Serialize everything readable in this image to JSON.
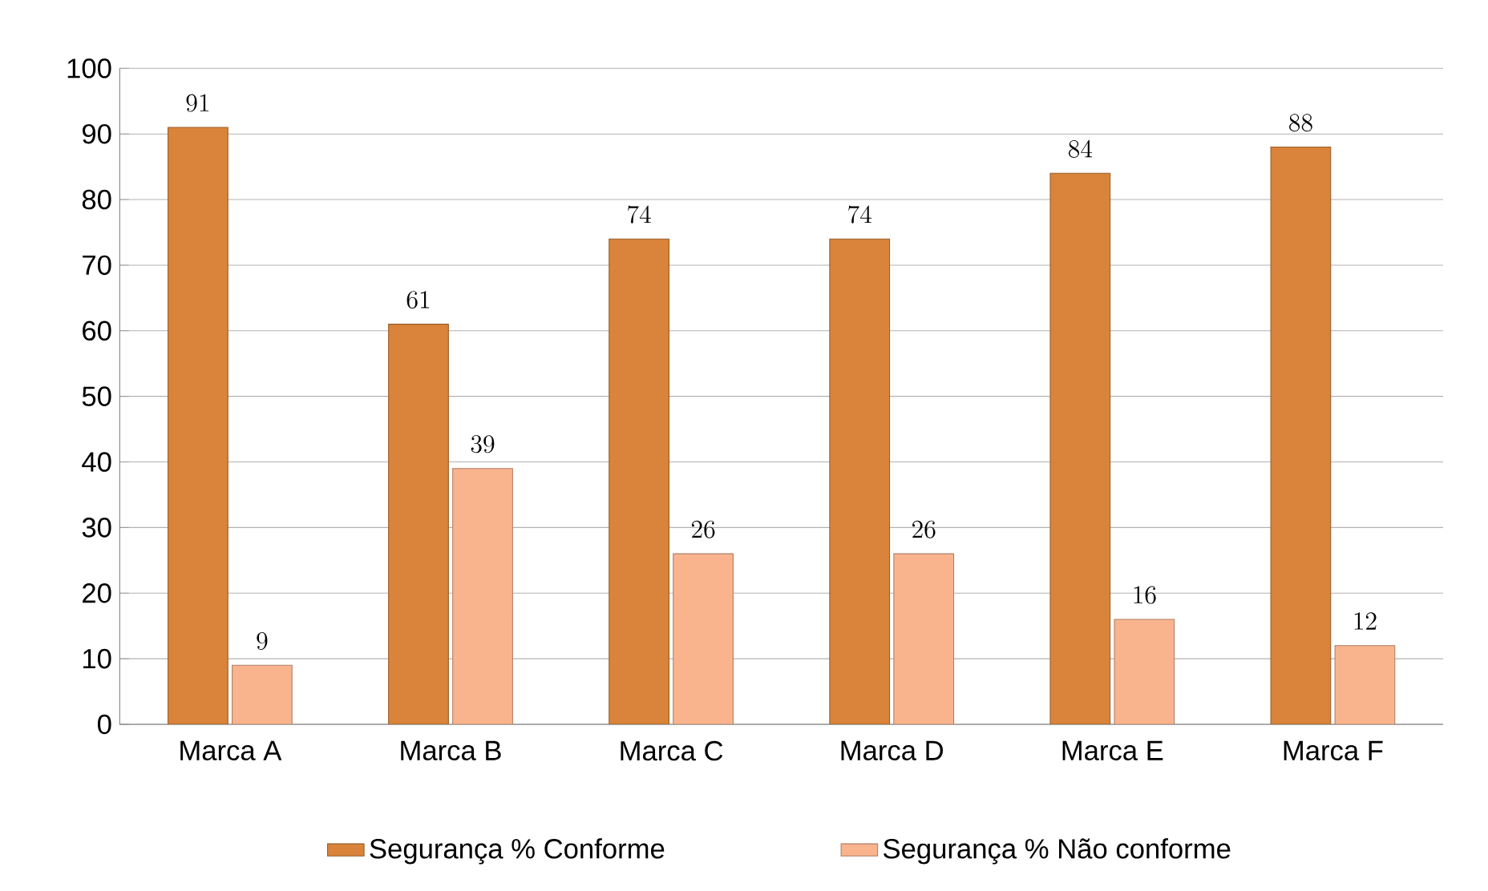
{
  "chart_data": {
    "type": "bar",
    "categories": [
      "Marca A",
      "Marca B",
      "Marca C",
      "Marca D",
      "Marca E",
      "Marca F"
    ],
    "series": [
      {
        "name": "Segurança % Conforme",
        "color": "#d9843a",
        "values": [
          91,
          61,
          74,
          74,
          84,
          88
        ]
      },
      {
        "name": "Segurança % Não conforme",
        "color": "#f9b48e",
        "values": [
          9,
          39,
          26,
          26,
          16,
          12
        ]
      }
    ],
    "ylim": [
      0,
      100
    ],
    "yticks": [
      0,
      10,
      20,
      30,
      40,
      50,
      60,
      70,
      80,
      90,
      100
    ],
    "grid": "y",
    "legend": "bottom",
    "data_labels": true
  }
}
